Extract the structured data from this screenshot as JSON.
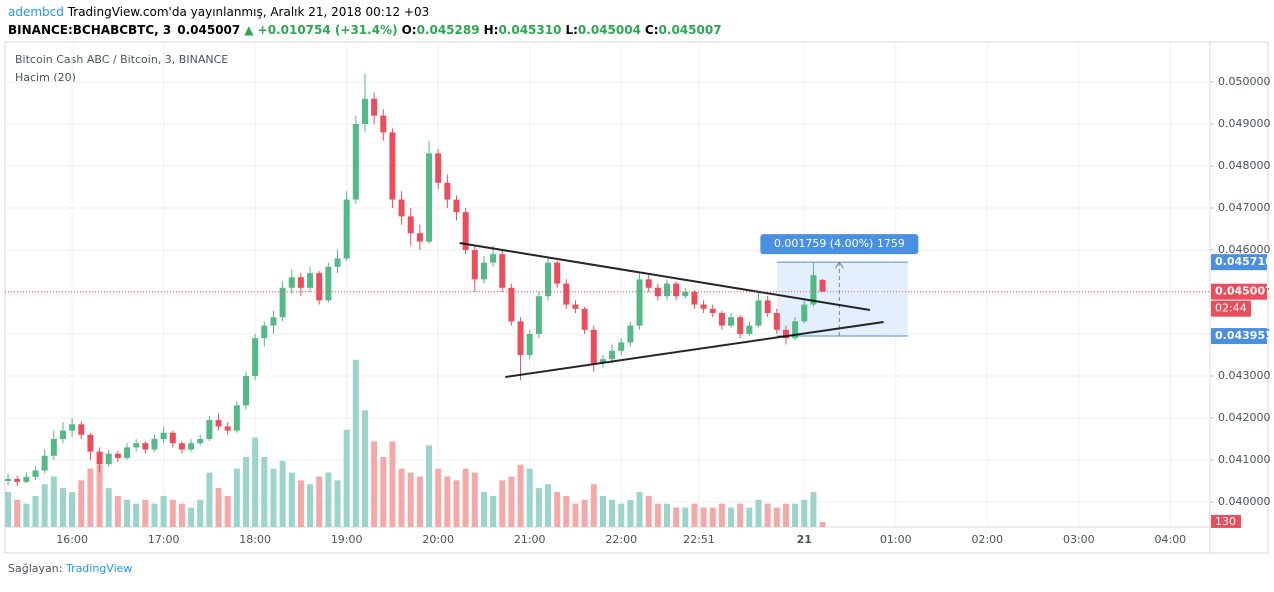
{
  "header": {
    "author": "adembcd",
    "published": "TradingView.com'da yayınlanmış, Aralık 21, 2018 00:12 +03",
    "symbol": "BINANCE:BCHABCBTC, 3",
    "change": "▲ +0.010754 (+31.4%)",
    "ohlc": [
      {
        "key": "O:",
        "value": "0.045289"
      },
      {
        "key": "H:",
        "value": "0.045310"
      },
      {
        "key": "L:",
        "value": "0.045004"
      },
      {
        "key": "C:",
        "value": "0.045007"
      }
    ]
  },
  "chart_data": {
    "type": "candlestick",
    "title": "Bitcoin Cash ABC / Bitcoin, 3, BINANCE",
    "volume_label": "Hacim (20)",
    "x": [
      "15:18",
      "15:24",
      "15:30",
      "15:36",
      "15:42",
      "15:48",
      "15:54",
      "16:00",
      "16:06",
      "16:12",
      "16:18",
      "16:24",
      "16:30",
      "16:36",
      "16:42",
      "16:48",
      "16:54",
      "17:00",
      "17:06",
      "17:12",
      "17:18",
      "17:24",
      "17:30",
      "17:36",
      "17:42",
      "17:48",
      "17:54",
      "18:00",
      "18:06",
      "18:12",
      "18:18",
      "18:24",
      "18:30",
      "18:36",
      "18:42",
      "18:48",
      "18:54",
      "19:00",
      "19:06",
      "19:12",
      "19:18",
      "19:24",
      "19:30",
      "19:36",
      "19:42",
      "19:48",
      "19:54",
      "20:00",
      "20:06",
      "20:12",
      "20:18",
      "20:24",
      "20:30",
      "20:36",
      "20:42",
      "20:48",
      "20:54",
      "21:00",
      "21:06",
      "21:12",
      "21:18",
      "21:24",
      "21:30",
      "21:36",
      "21:42",
      "21:48",
      "21:54",
      "22:00",
      "22:06",
      "22:12",
      "22:18",
      "22:24",
      "22:30",
      "22:36",
      "22:42",
      "22:48",
      "22:54",
      "23:00",
      "23:06",
      "23:12",
      "23:18",
      "23:24",
      "23:30",
      "23:36",
      "23:42",
      "23:48",
      "23:54",
      "00:00",
      "00:06",
      "00:12"
    ],
    "open": [
      0.0405,
      0.04055,
      0.04048,
      0.0406,
      0.04075,
      0.0411,
      0.0415,
      0.0417,
      0.04185,
      0.0416,
      0.0412,
      0.0409,
      0.04115,
      0.04105,
      0.0413,
      0.0414,
      0.04125,
      0.0415,
      0.04165,
      0.0414,
      0.04125,
      0.0414,
      0.0415,
      0.04195,
      0.0418,
      0.0417,
      0.0423,
      0.043,
      0.0439,
      0.0442,
      0.0444,
      0.0451,
      0.04535,
      0.0451,
      0.04545,
      0.0448,
      0.0456,
      0.0458,
      0.0472,
      0.049,
      0.0496,
      0.0492,
      0.0488,
      0.0472,
      0.0468,
      0.0464,
      0.0462,
      0.0483,
      0.0476,
      0.0472,
      0.0469,
      0.046,
      0.0453,
      0.0457,
      0.0459,
      0.0451,
      0.0443,
      0.0435,
      0.044,
      0.0449,
      0.0457,
      0.0452,
      0.0447,
      0.0446,
      0.0441,
      0.0433,
      0.0434,
      0.0436,
      0.0438,
      0.0442,
      0.0453,
      0.0451,
      0.0449,
      0.0452,
      0.0449,
      0.045,
      0.0447,
      0.0446,
      0.0445,
      0.0442,
      0.0444,
      0.044,
      0.0442,
      0.0448,
      0.0445,
      0.0441,
      0.0439,
      0.0443,
      0.0447,
      0.045289
    ],
    "high": [
      0.04068,
      0.04062,
      0.0407,
      0.04085,
      0.04125,
      0.0417,
      0.0419,
      0.042,
      0.04192,
      0.04165,
      0.0413,
      0.04125,
      0.04122,
      0.0414,
      0.0415,
      0.04145,
      0.0416,
      0.0418,
      0.0417,
      0.04145,
      0.0415,
      0.0416,
      0.04205,
      0.0421,
      0.0419,
      0.0424,
      0.0431,
      0.044,
      0.0443,
      0.04455,
      0.04525,
      0.04555,
      0.04545,
      0.0456,
      0.0455,
      0.0457,
      0.046,
      0.0474,
      0.0492,
      0.0502,
      0.04975,
      0.04935,
      0.0489,
      0.0474,
      0.047,
      0.0466,
      0.0486,
      0.0484,
      0.0478,
      0.0473,
      0.047,
      0.0461,
      0.04585,
      0.0461,
      0.046,
      0.0452,
      0.0444,
      0.0441,
      0.045,
      0.0458,
      0.04575,
      0.0453,
      0.0448,
      0.04465,
      0.0442,
      0.0435,
      0.04375,
      0.0439,
      0.0443,
      0.04545,
      0.0454,
      0.0452,
      0.0453,
      0.04525,
      0.0451,
      0.04505,
      0.0448,
      0.0447,
      0.04455,
      0.0445,
      0.04445,
      0.0443,
      0.045,
      0.0449,
      0.0446,
      0.0442,
      0.0444,
      0.0448,
      0.0457,
      0.04531
    ],
    "low": [
      0.0404,
      0.04038,
      0.04045,
      0.04052,
      0.04068,
      0.041,
      0.0414,
      0.04155,
      0.0415,
      0.041,
      0.0407,
      0.04085,
      0.04095,
      0.041,
      0.0412,
      0.04115,
      0.0412,
      0.0414,
      0.0413,
      0.04115,
      0.0412,
      0.04135,
      0.04145,
      0.0417,
      0.0416,
      0.04165,
      0.0422,
      0.0429,
      0.0437,
      0.044,
      0.0443,
      0.04495,
      0.0449,
      0.045,
      0.0447,
      0.04475,
      0.04545,
      0.04575,
      0.0471,
      0.0488,
      0.049,
      0.0486,
      0.047,
      0.0466,
      0.0461,
      0.046,
      0.04615,
      0.04745,
      0.047,
      0.0467,
      0.0459,
      0.045,
      0.0452,
      0.0456,
      0.045,
      0.0442,
      0.0429,
      0.0434,
      0.0439,
      0.0448,
      0.0451,
      0.0446,
      0.0445,
      0.044,
      0.0431,
      0.0432,
      0.0433,
      0.0435,
      0.0437,
      0.0441,
      0.045,
      0.0448,
      0.0448,
      0.0448,
      0.04485,
      0.0446,
      0.0445,
      0.0444,
      0.0441,
      0.04415,
      0.0439,
      0.04395,
      0.04415,
      0.0444,
      0.044,
      0.04375,
      0.04385,
      0.04425,
      0.04465,
      0.045004
    ],
    "close": [
      0.04055,
      0.04048,
      0.0406,
      0.04075,
      0.0411,
      0.0415,
      0.0417,
      0.04185,
      0.0416,
      0.0412,
      0.0409,
      0.04115,
      0.04105,
      0.0413,
      0.0414,
      0.04125,
      0.0415,
      0.04165,
      0.0414,
      0.04125,
      0.0414,
      0.0415,
      0.04195,
      0.0418,
      0.0417,
      0.0423,
      0.043,
      0.0439,
      0.0442,
      0.0444,
      0.0451,
      0.04535,
      0.0451,
      0.04545,
      0.0448,
      0.0456,
      0.0458,
      0.0472,
      0.049,
      0.0496,
      0.0492,
      0.0488,
      0.0472,
      0.0468,
      0.0464,
      0.0462,
      0.0483,
      0.0476,
      0.0472,
      0.0469,
      0.046,
      0.0453,
      0.0457,
      0.0459,
      0.0451,
      0.0443,
      0.0435,
      0.044,
      0.0449,
      0.0457,
      0.0452,
      0.0447,
      0.0446,
      0.0441,
      0.0433,
      0.0434,
      0.0436,
      0.0438,
      0.0442,
      0.0453,
      0.0451,
      0.0449,
      0.0452,
      0.0449,
      0.045,
      0.0447,
      0.0446,
      0.0445,
      0.0442,
      0.0444,
      0.044,
      0.0442,
      0.0448,
      0.0445,
      0.0441,
      0.0439,
      0.0443,
      0.0447,
      0.0454,
      0.045007
    ],
    "volume": [
      900,
      700,
      600,
      800,
      1100,
      1300,
      1000,
      900,
      1200,
      1500,
      1600,
      1000,
      800,
      700,
      600,
      700,
      600,
      800,
      700,
      600,
      500,
      700,
      1400,
      1000,
      800,
      1500,
      1800,
      2300,
      1800,
      1500,
      1700,
      1400,
      1200,
      1100,
      1300,
      1400,
      1200,
      2500,
      4300,
      3000,
      2200,
      1800,
      2200,
      1500,
      1400,
      1300,
      2100,
      1500,
      1300,
      1200,
      1500,
      1400,
      900,
      800,
      1200,
      1300,
      1600,
      1500,
      1000,
      1100,
      900,
      800,
      600,
      700,
      1100,
      800,
      700,
      600,
      700,
      900,
      800,
      600,
      600,
      500,
      500,
      600,
      500,
      500,
      600,
      500,
      600,
      500,
      700,
      600,
      500,
      600,
      600,
      700,
      900,
      130
    ],
    "up_color": "#53b987",
    "down_color": "#eb4d5c",
    "volume_up_color": "#9bd4cb",
    "volume_down_color": "#f4a9a8",
    "ylim": [
      0.039405,
      0.050952
    ],
    "volume_ylim": [
      0,
      4500
    ],
    "xlim": [
      "15:16",
      "04:26"
    ],
    "yticks": [
      {
        "value": 0.05,
        "label": "0.050000"
      },
      {
        "value": 0.049,
        "label": "0.049000"
      },
      {
        "value": 0.048,
        "label": "0.048000"
      },
      {
        "value": 0.047,
        "label": "0.047000"
      },
      {
        "value": 0.046,
        "label": "0.046000"
      },
      {
        "value": 0.045,
        "label": "0.045000"
      },
      {
        "value": 0.044,
        "label": "0.044000"
      },
      {
        "value": 0.043,
        "label": "0.043000"
      },
      {
        "value": 0.042,
        "label": "0.042000"
      },
      {
        "value": 0.041,
        "label": "0.041000"
      },
      {
        "value": 0.04,
        "label": "0.040000"
      }
    ],
    "xticks": [
      "16:00",
      "17:00",
      "18:00",
      "19:00",
      "20:00",
      "21:00",
      "22:00",
      "22:51",
      {
        "value": "00:00",
        "label": "21"
      },
      "01:00",
      "02:00",
      "03:00",
      "04:00"
    ],
    "grid": true,
    "countdown": "02:44",
    "drawings": [
      {
        "x": [
          "20:14",
          "00:43"
        ],
        "y": [
          0.046167,
          0.044571
        ]
      },
      {
        "x": [
          "20:44",
          "00:52"
        ],
        "y": [
          0.042976,
          0.044286
        ]
      }
    ],
    "measure": {
      "x": [
        "23:42",
        "01:08"
      ],
      "arrow_x": "00:23",
      "low": {
        "value": 0.043951,
        "label": "0.043951"
      },
      "high": {
        "value": 0.04571,
        "label": "0.045710"
      },
      "label": "0.001759 (4.00%) 1759",
      "color": "#4a90e2"
    }
  }
}
